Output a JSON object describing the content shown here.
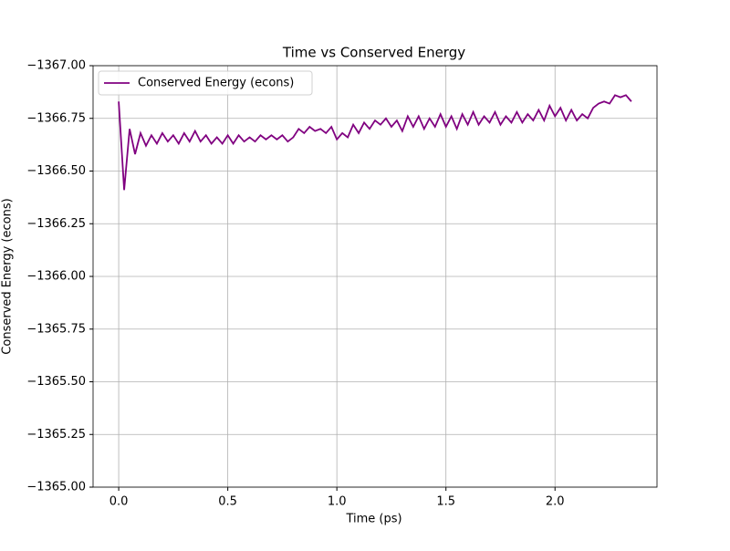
{
  "chart_data": {
    "type": "line",
    "title": "Time vs Conserved Energy",
    "x_label": "Time (ps)",
    "y_label": "Conserved Energy (econs)",
    "x": [
      0,
      0.025,
      0.05,
      0.075,
      0.1,
      0.125,
      0.15,
      0.175,
      0.2,
      0.225,
      0.25,
      0.275,
      0.3,
      0.325,
      0.35,
      0.375,
      0.4,
      0.425,
      0.45,
      0.475,
      0.5,
      0.525,
      0.55,
      0.575,
      0.6,
      0.625,
      0.65,
      0.675,
      0.7,
      0.725,
      0.75,
      0.775,
      0.8,
      0.825,
      0.85,
      0.875,
      0.9,
      0.925,
      0.95,
      0.975,
      1.0,
      1.025,
      1.05,
      1.075,
      1.1,
      1.125,
      1.15,
      1.175,
      1.2,
      1.225,
      1.25,
      1.275,
      1.3,
      1.325,
      1.35,
      1.375,
      1.4,
      1.425,
      1.45,
      1.475,
      1.5,
      1.525,
      1.55,
      1.575,
      1.6,
      1.625,
      1.65,
      1.675,
      1.7,
      1.725,
      1.75,
      1.775,
      1.8,
      1.825,
      1.85,
      1.875,
      1.9,
      1.925,
      1.95,
      1.975,
      2.0,
      2.025,
      2.05,
      2.075,
      2.1,
      2.125,
      2.15,
      2.175,
      2.2,
      2.225,
      2.25,
      2.275,
      2.3,
      2.325,
      2.35
    ],
    "series": [
      {
        "name": "Conserved Energy (econs)",
        "color": "#800080",
        "values": [
          -1366.83,
          -1366.41,
          -1366.7,
          -1366.58,
          -1366.68,
          -1366.62,
          -1366.67,
          -1366.63,
          -1366.68,
          -1366.64,
          -1366.67,
          -1366.63,
          -1366.68,
          -1366.64,
          -1366.69,
          -1366.64,
          -1366.67,
          -1366.63,
          -1366.66,
          -1366.63,
          -1366.67,
          -1366.63,
          -1366.67,
          -1366.64,
          -1366.66,
          -1366.64,
          -1366.67,
          -1366.65,
          -1366.67,
          -1366.65,
          -1366.67,
          -1366.64,
          -1366.66,
          -1366.7,
          -1366.68,
          -1366.71,
          -1366.69,
          -1366.7,
          -1366.68,
          -1366.71,
          -1366.65,
          -1366.68,
          -1366.66,
          -1366.72,
          -1366.68,
          -1366.73,
          -1366.7,
          -1366.74,
          -1366.72,
          -1366.75,
          -1366.71,
          -1366.74,
          -1366.69,
          -1366.76,
          -1366.71,
          -1366.76,
          -1366.7,
          -1366.75,
          -1366.71,
          -1366.77,
          -1366.71,
          -1366.76,
          -1366.7,
          -1366.77,
          -1366.72,
          -1366.78,
          -1366.72,
          -1366.76,
          -1366.73,
          -1366.78,
          -1366.72,
          -1366.76,
          -1366.73,
          -1366.78,
          -1366.73,
          -1366.77,
          -1366.74,
          -1366.79,
          -1366.74,
          -1366.81,
          -1366.76,
          -1366.8,
          -1366.74,
          -1366.79,
          -1366.74,
          -1366.77,
          -1366.75,
          -1366.8,
          -1366.82,
          -1366.83,
          -1366.82,
          -1366.86,
          -1366.85,
          -1366.86,
          -1366.83
        ]
      }
    ],
    "xlim": [
      -0.1175,
      2.4675
    ],
    "xticks": [
      {
        "value": 0,
        "label": "0.0"
      },
      0.5,
      {
        "value": 1,
        "label": "1.0"
      },
      1.5,
      {
        "value": 2,
        "label": "2.0"
      }
    ],
    "ylim": [
      -1365,
      -1367
    ],
    "yticks": [
      {
        "value": -1367,
        "label": "−1367.00"
      },
      {
        "value": -1366.75,
        "label": "−1366.75"
      },
      {
        "value": -1366.5,
        "label": "−1366.50"
      },
      {
        "value": -1366.25,
        "label": "−1366.25"
      },
      {
        "value": -1366,
        "label": "−1366.00"
      },
      {
        "value": -1365.75,
        "label": "−1365.75"
      },
      {
        "value": -1365.5,
        "label": "−1365.50"
      },
      {
        "value": -1365.25,
        "label": "−1365.25"
      },
      {
        "value": -1365,
        "label": "−1365.00"
      }
    ],
    "grid": true,
    "legend": "upper-left"
  }
}
